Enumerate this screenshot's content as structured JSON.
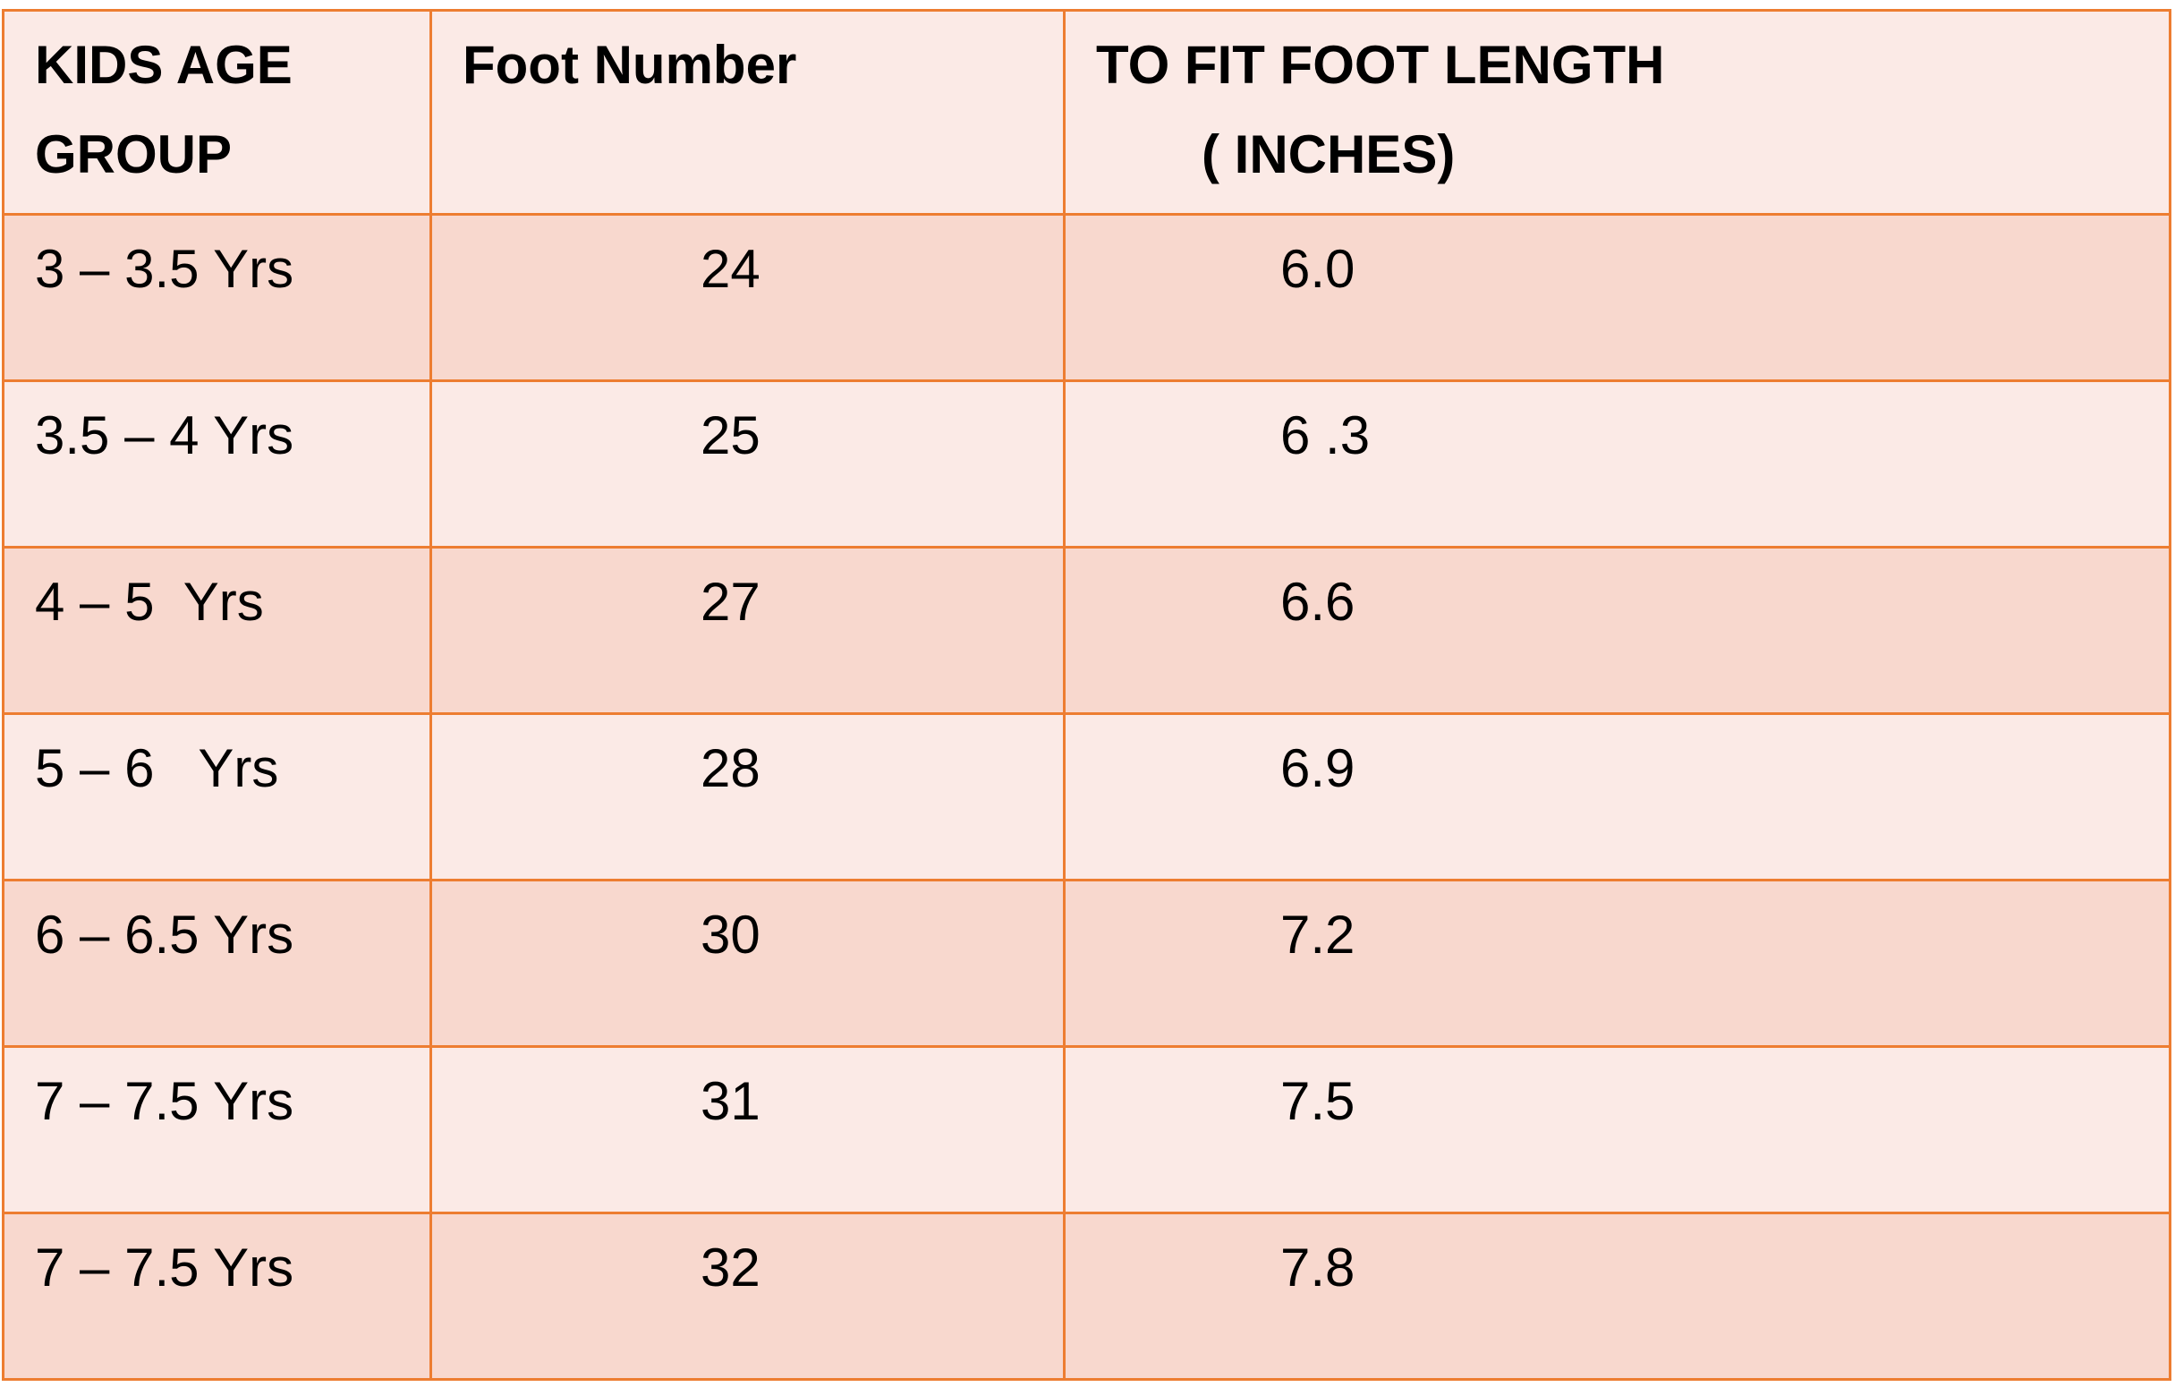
{
  "table": {
    "headers": [
      "KIDS AGE GROUP",
      "Foot Number",
      "TO FIT FOOT LENGTH",
      "( INCHES)"
    ],
    "rows": [
      {
        "age": "3 – 3.5 Yrs",
        "foot": "24",
        "length": "6.0"
      },
      {
        "age": "3.5 – 4 Yrs",
        "foot": "25",
        "length": "6 .3"
      },
      {
        "age": "4 – 5  Yrs",
        "foot": "27",
        "length": "6.6"
      },
      {
        "age": "5 – 6   Yrs",
        "foot": "28",
        "length": "6.9"
      },
      {
        "age": "6 – 6.5 Yrs",
        "foot": "30",
        "length": "7.2"
      },
      {
        "age": "7 – 7.5 Yrs",
        "foot": "31",
        "length": "7.5"
      },
      {
        "age": "7 – 7.5 Yrs",
        "foot": "32",
        "length": "7.8"
      }
    ]
  },
  "colors": {
    "border": "#ED7D31",
    "band_dark": "#F8D8CE",
    "band_light": "#FBEAE6"
  }
}
